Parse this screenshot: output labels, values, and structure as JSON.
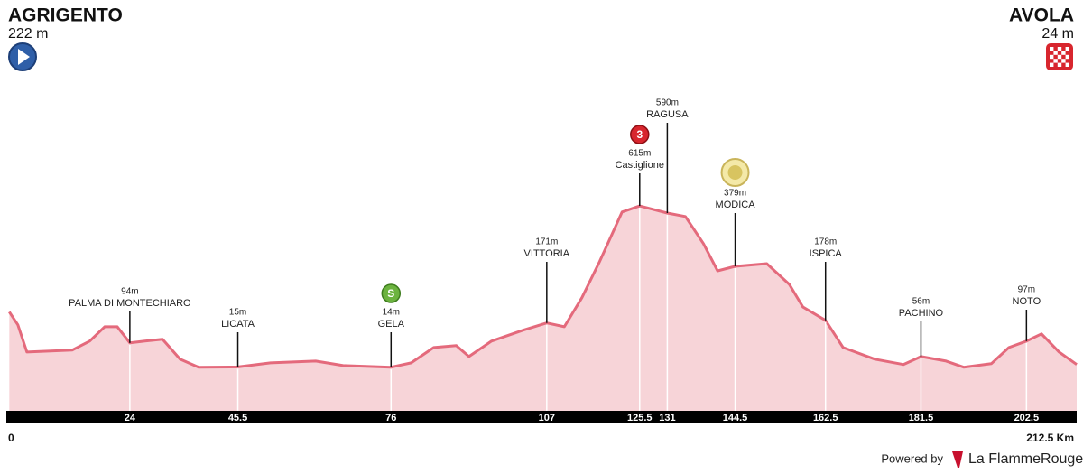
{
  "chart_data": {
    "type": "area",
    "start": {
      "name": "AGRIGENTO",
      "altitude": "222 m"
    },
    "finish": {
      "name": "AVOLA",
      "altitude": "24 m"
    },
    "x": [
      0,
      1.7,
      3.5,
      12.5,
      16,
      19,
      21.5,
      24,
      27,
      30.5,
      34,
      37.7,
      45.5,
      52,
      61,
      66.5,
      76,
      80,
      84.5,
      89,
      91.5,
      96,
      102.3,
      107,
      110.5,
      114,
      117.5,
      122,
      125.5,
      131,
      134.6,
      138.2,
      141,
      144.5,
      150.8,
      155.3,
      158,
      162.5,
      166,
      172.3,
      178,
      181.5,
      186.5,
      190,
      195.5,
      199,
      202.5,
      205.5,
      209,
      212.5
    ],
    "values": [
      222,
      173,
      71,
      78,
      112,
      166,
      166,
      105,
      112,
      119,
      44,
      14,
      15,
      30,
      37,
      20,
      14,
      30,
      88,
      95,
      54,
      112,
      153,
      180,
      166,
      275,
      410,
      597,
      620,
      593,
      580,
      478,
      376,
      393,
      403,
      325,
      240,
      190,
      88,
      44,
      24,
      54,
      37,
      14,
      27,
      88,
      112,
      139,
      71,
      24
    ],
    "color": "#f7d4d8",
    "line_color": "#e46a7c",
    "xlim": [
      0,
      212.5
    ],
    "x_end_label": "212.5 Km",
    "ylim": [
      -150,
      800
    ],
    "xticks": [
      24,
      45.5,
      76,
      107,
      125.5,
      131,
      144.5,
      162.5,
      181.5,
      202.5
    ],
    "waypoints": [
      {
        "km": 24,
        "name": "PALMA DI MONTECHIARO",
        "altitude": "94m"
      },
      {
        "km": 45.5,
        "name": "LICATA",
        "altitude": "15m"
      },
      {
        "km": 76,
        "name": "GELA",
        "altitude": "14m",
        "icon": "S"
      },
      {
        "km": 107,
        "name": "VITTORIA",
        "altitude": "171m"
      },
      {
        "km": 125.5,
        "name": "Castiglione",
        "altitude": "615m",
        "icon": "3"
      },
      {
        "km": 131,
        "name": "RAGUSA",
        "altitude": "590m"
      },
      {
        "km": 144.5,
        "name": "MODICA",
        "altitude": "379m"
      },
      {
        "km": 162.5,
        "name": "ISPICA",
        "altitude": "178m"
      },
      {
        "km": 181.5,
        "name": "PACHINO",
        "altitude": "56m"
      },
      {
        "km": 202.5,
        "name": "NOTO",
        "altitude": "97m"
      }
    ],
    "footer": {
      "powered_by": "Powered by",
      "brand": "La FlammeRouge"
    }
  }
}
